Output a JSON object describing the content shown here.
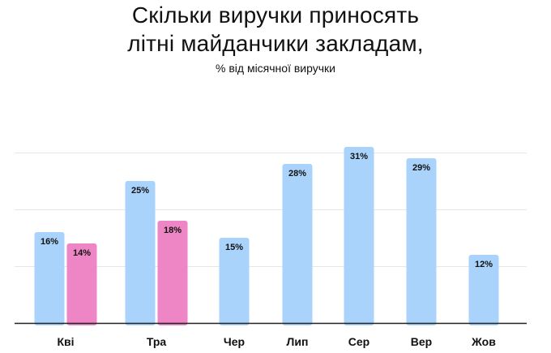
{
  "title_line1": "Скільки виручки приносять",
  "title_line2": "літні майданчики закладам,",
  "subtitle": "% від місячної виручки",
  "chart_data": {
    "type": "bar",
    "categories": [
      "Кві",
      "Тра",
      "Чер",
      "Лип",
      "Сер",
      "Вер",
      "Жов"
    ],
    "series": [
      {
        "color": "#a9d3fb",
        "values": [
          16,
          25,
          15,
          28,
          31,
          29,
          12
        ],
        "labels": [
          "16%",
          "25%",
          "15%",
          "28%",
          "31%",
          "29%",
          "12%"
        ]
      },
      {
        "color": "#ee86c6",
        "values": [
          14,
          18,
          null,
          null,
          null,
          null,
          null
        ],
        "labels": [
          "14%",
          "18%",
          "",
          "",
          "",
          "",
          ""
        ]
      }
    ],
    "ylim": [
      0,
      31
    ],
    "grid": true,
    "colors": {
      "gridline": "#e6e6e6",
      "baseline": "#222222"
    }
  }
}
